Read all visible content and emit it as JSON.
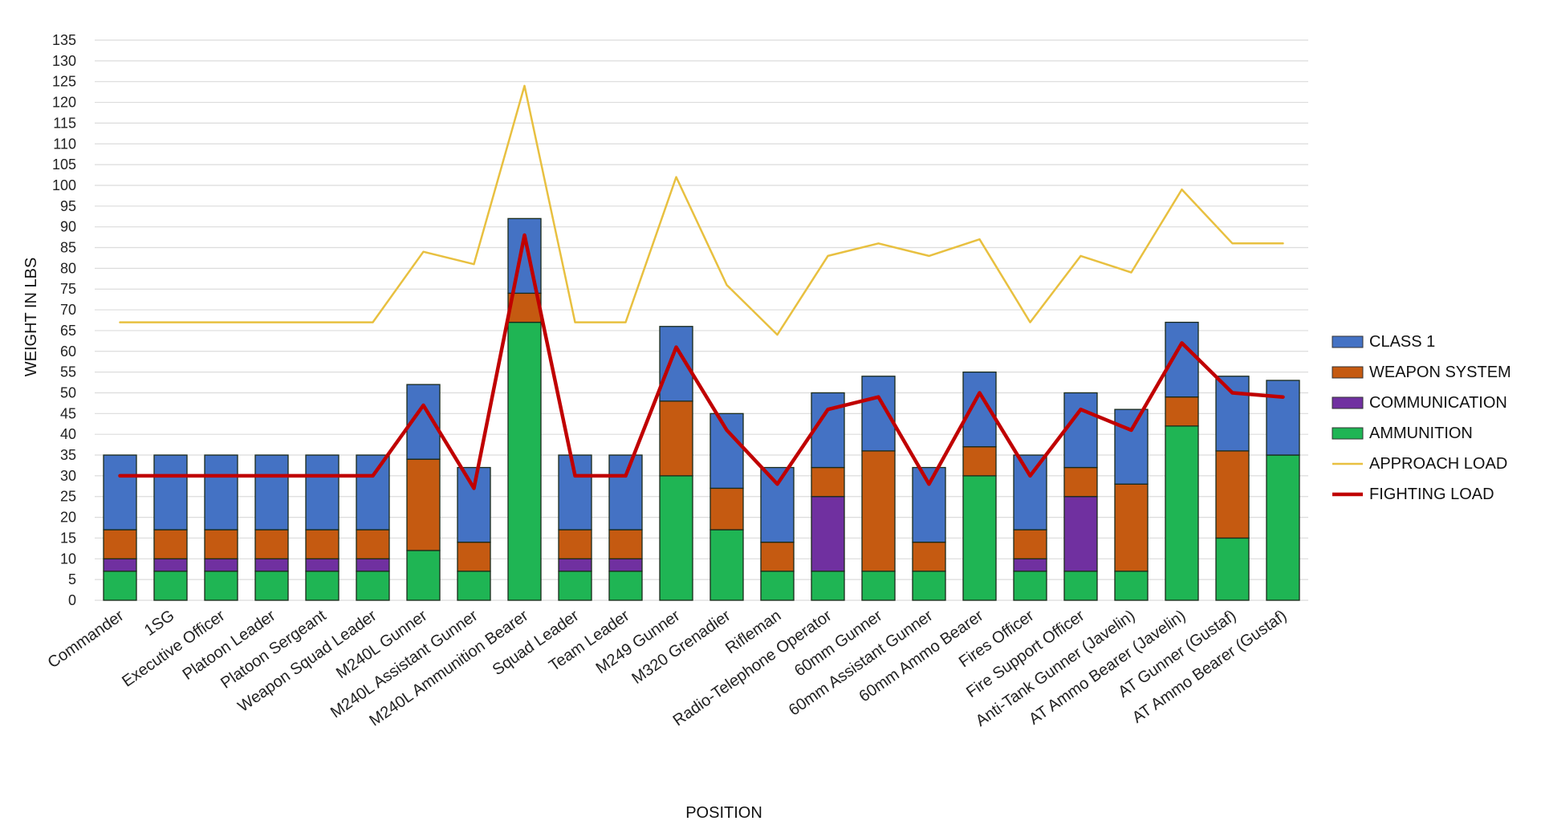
{
  "chart_data": {
    "type": "bar",
    "stacked": true,
    "title": "",
    "xlabel": "POSITION",
    "ylabel": "WEIGHT IN LBS",
    "ylim": [
      0,
      135
    ],
    "ytick_step": 5,
    "grid": true,
    "legend_position": "right",
    "categories": [
      "Commander",
      "1SG",
      "Executive Officer",
      "Platoon Leader",
      "Platoon Sergeant",
      "Weapon Squad Leader",
      "M240L Gunner",
      "M240L Assistant Gunner",
      "M240L Ammunition Bearer",
      "Squad Leader",
      "Team Leader",
      "M249 Gunner",
      "M320 Grenadier",
      "Rifleman",
      "Radio-Telephone Operator",
      "60mm Gunner",
      "60mm Assistant Gunner",
      "60mm Ammo Bearer",
      "Fires Officer",
      "Fire Support Officer",
      "Anti-Tank Gunner (Javelin)",
      "AT Ammo Bearer (Javelin)",
      "AT Gunner (Gustaf)",
      "AT Ammo Bearer (Gustaf)"
    ],
    "series": [
      {
        "name": "AMMUNITION",
        "kind": "bar",
        "color": "#1fb554",
        "values": [
          7,
          7,
          7,
          7,
          7,
          7,
          12,
          7,
          67,
          7,
          7,
          30,
          17,
          7,
          7,
          7,
          7,
          30,
          7,
          7,
          7,
          42,
          15,
          35
        ]
      },
      {
        "name": "COMMUNICATION",
        "kind": "bar",
        "color": "#7030a0",
        "values": [
          3,
          3,
          3,
          3,
          3,
          3,
          0,
          0,
          0,
          3,
          3,
          0,
          0,
          0,
          18,
          0,
          0,
          0,
          3,
          18,
          0,
          0,
          0,
          0
        ]
      },
      {
        "name": "WEAPON SYSTEM",
        "kind": "bar",
        "color": "#c55a11",
        "values": [
          7,
          7,
          7,
          7,
          7,
          7,
          22,
          7,
          7,
          7,
          7,
          18,
          10,
          7,
          7,
          29,
          7,
          7,
          7,
          7,
          21,
          7,
          21,
          0
        ]
      },
      {
        "name": "CLASS 1",
        "kind": "bar",
        "color": "#4472c4",
        "values": [
          18,
          18,
          18,
          18,
          18,
          18,
          18,
          18,
          18,
          18,
          18,
          18,
          18,
          18,
          18,
          18,
          18,
          18,
          18,
          18,
          18,
          18,
          18,
          18
        ]
      },
      {
        "name": "APPROACH LOAD",
        "kind": "line",
        "color": "#e8c040",
        "values": [
          67,
          67,
          67,
          67,
          67,
          67,
          84,
          81,
          124,
          67,
          67,
          102,
          76,
          64,
          83,
          86,
          83,
          87,
          67,
          83,
          79,
          99,
          86,
          86
        ]
      },
      {
        "name": "FIGHTING LOAD",
        "kind": "line",
        "color": "#c00000",
        "values": [
          30,
          30,
          30,
          30,
          30,
          30,
          47,
          27,
          88,
          30,
          30,
          61,
          41,
          28,
          46,
          49,
          28,
          50,
          30,
          46,
          41,
          62,
          50,
          49
        ]
      }
    ],
    "legend": [
      {
        "name": "CLASS 1",
        "kind": "bar",
        "color": "#4472c4"
      },
      {
        "name": "WEAPON SYSTEM",
        "kind": "bar",
        "color": "#c55a11"
      },
      {
        "name": "COMMUNICATION",
        "kind": "bar",
        "color": "#7030a0"
      },
      {
        "name": "AMMUNITION",
        "kind": "bar",
        "color": "#1fb554"
      },
      {
        "name": "APPROACH LOAD",
        "kind": "line",
        "color": "#e8c040"
      },
      {
        "name": "FIGHTING LOAD",
        "kind": "line",
        "color": "#c00000"
      }
    ]
  }
}
